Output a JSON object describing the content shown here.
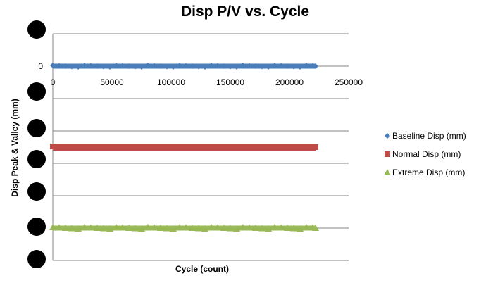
{
  "chart_data": {
    "type": "line",
    "title": "Disp P/V vs. Cycle",
    "xlabel": "Cycle (count)",
    "ylabel": "Disp Peak & Valley (mm)",
    "x_ticks": [
      "0",
      "50000",
      "100000",
      "150000",
      "200000",
      "250000"
    ],
    "xlim": [
      0,
      250000
    ],
    "y_tick_labels": [
      "",
      "0",
      "",
      "",
      "",
      "",
      "",
      ""
    ],
    "y_tick_values": [
      1,
      0,
      -1,
      -2,
      -3,
      -4,
      -5,
      -6
    ],
    "ylim": [
      -6,
      1
    ],
    "grid": true,
    "legend_position": "right",
    "x_range": [
      0,
      222000
    ],
    "series": [
      {
        "name": "Baseline Disp (mm)",
        "marker": "diamond",
        "color": "#4a7ebb",
        "y": 0
      },
      {
        "name": "Normal Disp (mm)",
        "marker": "square",
        "color": "#be4b48",
        "y": -2.5
      },
      {
        "name": "Extreme Disp (mm)",
        "marker": "triangle",
        "color": "#98b954",
        "y": -5
      }
    ]
  }
}
